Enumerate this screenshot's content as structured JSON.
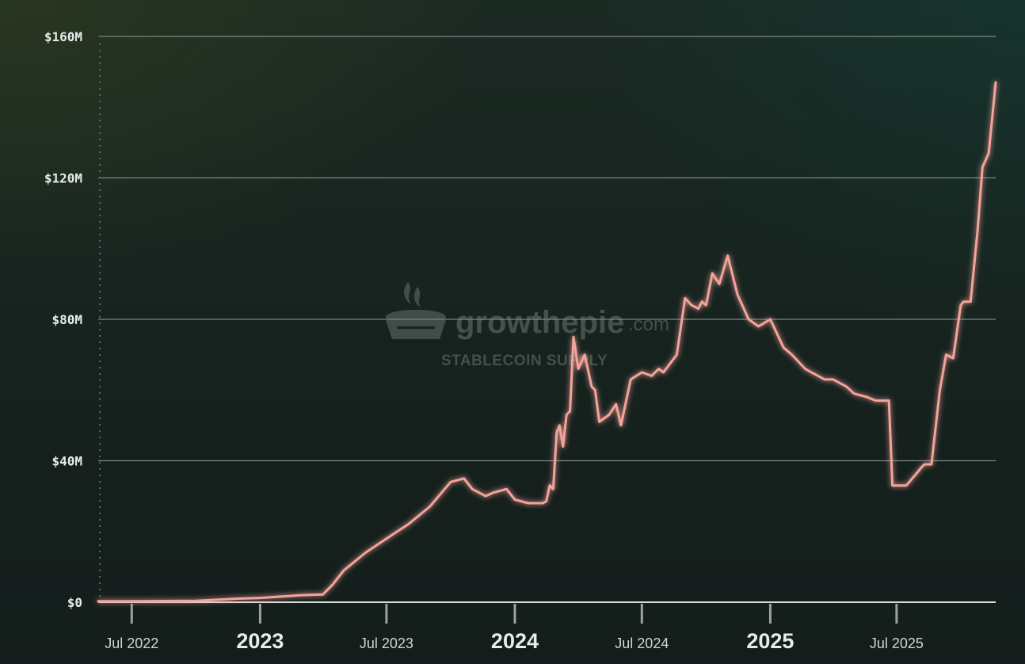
{
  "watermark": {
    "brand": "growthepie",
    "brand_suffix": ".com",
    "subtitle": "STABLECOIN SUPPLY"
  },
  "colors": {
    "line": "#f4a39a",
    "grid": "#7c8682",
    "axis_text": "#e6ebe8"
  },
  "chart_data": {
    "type": "line",
    "title": "",
    "xlabel": "",
    "ylabel": "",
    "ylim": [
      0,
      160
    ],
    "y_unit": "M",
    "grid": true,
    "legend": "none",
    "y_ticks": [
      {
        "value": 0,
        "label": "$0"
      },
      {
        "value": 40,
        "label": "$40M"
      },
      {
        "value": 80,
        "label": "$80M"
      },
      {
        "value": 120,
        "label": "$120M"
      },
      {
        "value": 160,
        "label": "$160M"
      }
    ],
    "x_ticks": [
      {
        "date": "2022-07-01",
        "label": "Jul 2022",
        "major": false
      },
      {
        "date": "2023-01-01",
        "label": "2023",
        "major": true
      },
      {
        "date": "2023-07-01",
        "label": "Jul 2023",
        "major": false
      },
      {
        "date": "2024-01-01",
        "label": "2024",
        "major": true
      },
      {
        "date": "2024-07-01",
        "label": "Jul 2024",
        "major": false
      },
      {
        "date": "2025-01-01",
        "label": "2025",
        "major": true
      },
      {
        "date": "2025-07-01",
        "label": "Jul 2025",
        "major": false
      }
    ],
    "series": [
      {
        "x": [
          "2022-05-14",
          "2022-07-01",
          "2022-10-01",
          "2022-12-01",
          "2023-01-01",
          "2023-03-01",
          "2023-04-01",
          "2023-04-15",
          "2023-05-01",
          "2023-06-01",
          "2023-07-01",
          "2023-08-01",
          "2023-09-01",
          "2023-10-01",
          "2023-10-20",
          "2023-11-01",
          "2023-11-20",
          "2023-12-01",
          "2023-12-20",
          "2024-01-01",
          "2024-01-20",
          "2024-02-01",
          "2024-02-10",
          "2024-02-15",
          "2024-02-20",
          "2024-02-25",
          "2024-03-01",
          "2024-03-05",
          "2024-03-10",
          "2024-03-15",
          "2024-03-20",
          "2024-03-25",
          "2024-04-01",
          "2024-04-10",
          "2024-04-20",
          "2024-04-25",
          "2024-05-01",
          "2024-05-15",
          "2024-05-25",
          "2024-06-01",
          "2024-06-15",
          "2024-07-01",
          "2024-07-15",
          "2024-07-20",
          "2024-07-25",
          "2024-08-01",
          "2024-08-20",
          "2024-09-01",
          "2024-09-10",
          "2024-09-20",
          "2024-09-25",
          "2024-10-01",
          "2024-10-10",
          "2024-10-20",
          "2024-11-01",
          "2024-11-15",
          "2024-12-01",
          "2024-12-15",
          "2025-01-01",
          "2025-01-20",
          "2025-02-01",
          "2025-02-20",
          "2025-03-01",
          "2025-03-20",
          "2025-04-01",
          "2025-04-20",
          "2025-05-01",
          "2025-05-20",
          "2025-06-01",
          "2025-06-15",
          "2025-06-20",
          "2025-06-25",
          "2025-07-01",
          "2025-07-15",
          "2025-08-01",
          "2025-08-05",
          "2025-08-10",
          "2025-08-20",
          "2025-09-01",
          "2025-09-10",
          "2025-09-20",
          "2025-10-01",
          "2025-10-05",
          "2025-10-15",
          "2025-10-25",
          "2025-11-01",
          "2025-11-10",
          "2025-11-20"
        ],
        "values": [
          0.3,
          0.3,
          0.4,
          1.0,
          1.2,
          2.0,
          2.2,
          5.0,
          9.0,
          14.0,
          18.0,
          22.0,
          27.0,
          34.0,
          35.0,
          32.0,
          30.0,
          31.0,
          32.0,
          29.0,
          28.0,
          28.0,
          28.0,
          28.5,
          33.0,
          32.0,
          48.0,
          50.0,
          44.0,
          53.0,
          54.0,
          75.0,
          66.0,
          70.0,
          61.0,
          60.0,
          51.0,
          53.0,
          56.0,
          50.0,
          63.0,
          65.0,
          64.0,
          65.0,
          66.0,
          65.0,
          70.0,
          86.0,
          84.0,
          83.0,
          85.0,
          84.0,
          93.0,
          90.0,
          98.0,
          87.0,
          80.0,
          78.0,
          80.0,
          72.0,
          70.0,
          66.0,
          65.0,
          63.0,
          63.0,
          61.0,
          59.0,
          58.0,
          57.0,
          57.0,
          57.0,
          33.0,
          33.0,
          33.0,
          37.0,
          38.0,
          39.0,
          39.0,
          60.0,
          70.0,
          69.0,
          84.0,
          85.0,
          85.0,
          105.0,
          123.0,
          127.0,
          147.0
        ]
      }
    ]
  }
}
